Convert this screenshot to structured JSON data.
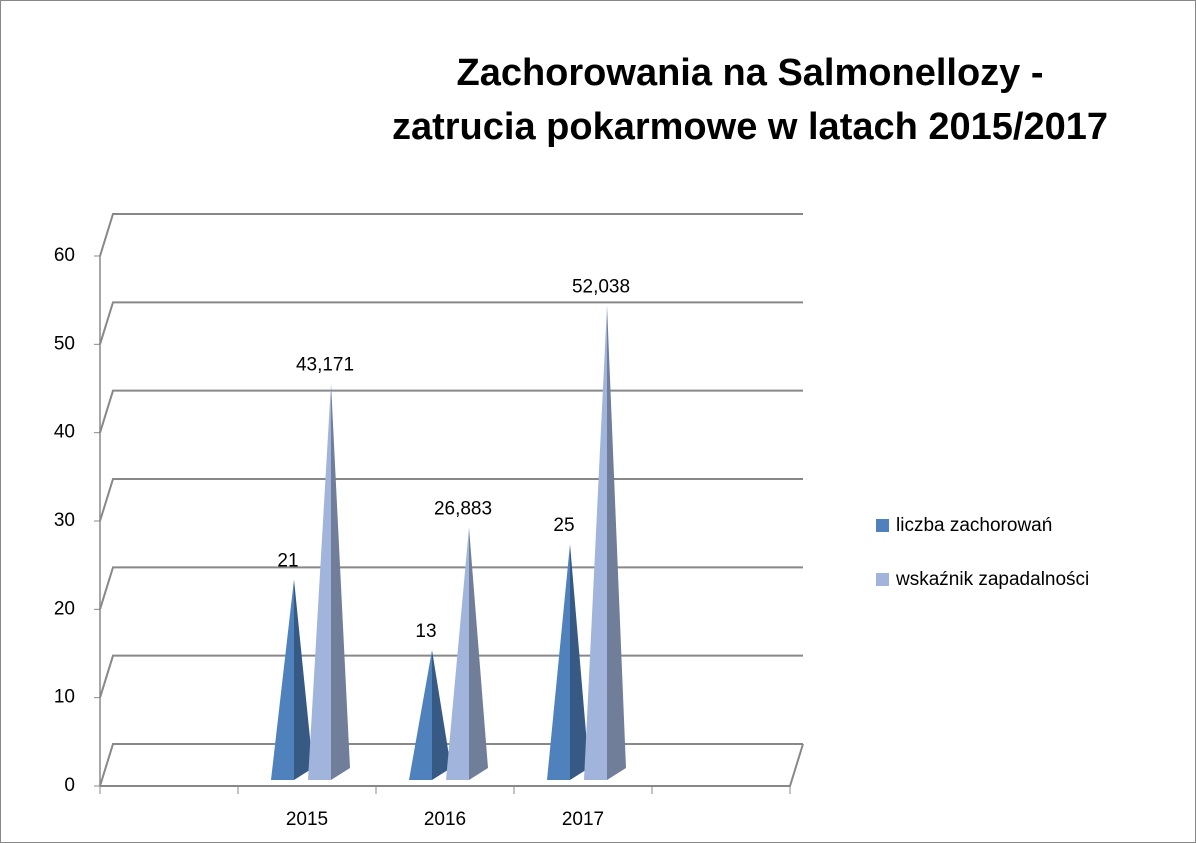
{
  "chart_data": {
    "type": "pyramid",
    "title": [
      "Zachorowania na Salmonellozy -",
      "zatrucia pokarmowe w latach 2015/2017"
    ],
    "categories": [
      null,
      "2015",
      "2016",
      "2017",
      null
    ],
    "series": [
      {
        "name": "liczba zachorowań",
        "color": "#4f81bd",
        "values": [
          null,
          21,
          13,
          25,
          null
        ]
      },
      {
        "name": "wskaźnik zapadalności",
        "color": "#a0b4dc",
        "values": [
          null,
          43.171,
          26.883,
          52.038,
          null
        ],
        "value_labels": [
          null,
          "43,171",
          "26,883",
          "52,038",
          null
        ]
      }
    ],
    "ylim": [
      0,
      60
    ],
    "yticks": [
      0,
      10,
      20,
      30,
      40,
      50,
      60
    ],
    "grid": true,
    "legend": "right"
  }
}
